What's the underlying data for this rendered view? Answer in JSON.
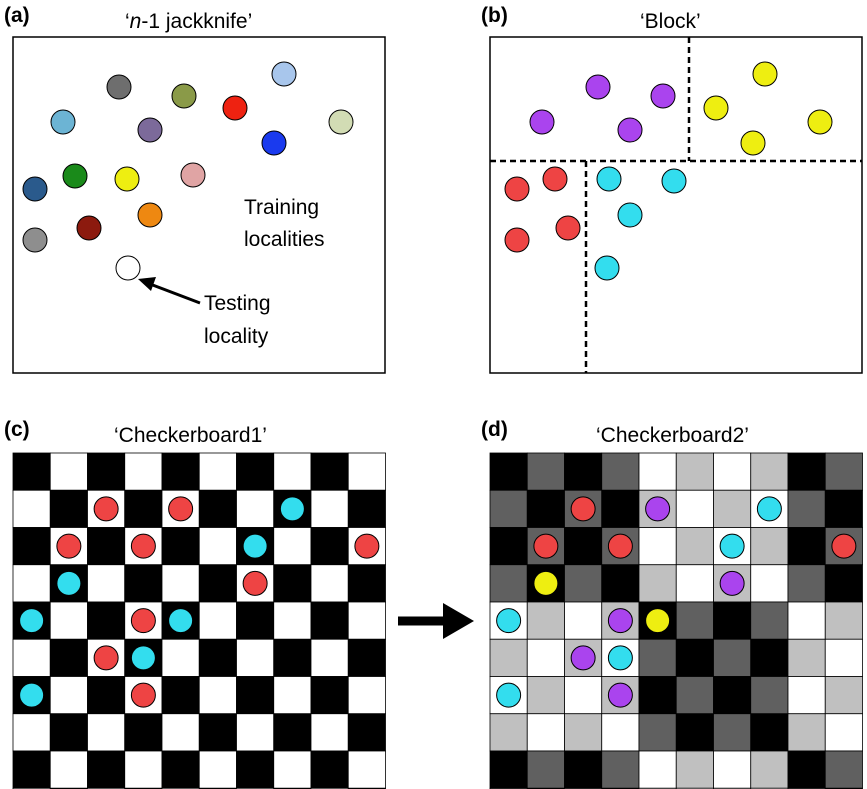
{
  "panels": [
    {
      "id": "a",
      "label": "(a)",
      "title": "‘n-1 jackknife’",
      "title_italic": "n",
      "title_rest": "-1 jackknife’",
      "annotations": {
        "training_line1": "Training",
        "training_line2": "localities",
        "testing_line1": "Testing",
        "testing_line2": "locality"
      }
    },
    {
      "id": "b",
      "label": "(b)",
      "title": "‘Block’"
    },
    {
      "id": "c",
      "label": "(c)",
      "title": "‘Checkerboard1’"
    },
    {
      "id": "d",
      "label": "(d)",
      "title": "‘Checkerboard2’"
    }
  ],
  "colors": {
    "red": "#ee4444",
    "cyan": "#33ddee",
    "purple": "#aa44ee",
    "yellow": "#eeee11",
    "black": "#000000",
    "dark_gray": "#606060",
    "light_gray": "#c0c0c0",
    "white": "#ffffff"
  },
  "jackknife_point_colors": [
    "#6e6e6e",
    "#8a9a48",
    "#a8c6ec",
    "#6cb4d4",
    "#7c6a9a",
    "#ee2211",
    "#d2dcb4",
    "#1a3aee",
    "#2a5a8c",
    "#1a8a1a",
    "#eeee11",
    "#e0a4a4",
    "#ee8811",
    "#8c1a0e",
    "#8e8e8e",
    "#ffffff"
  ],
  "arrow_icon": "right-arrow"
}
